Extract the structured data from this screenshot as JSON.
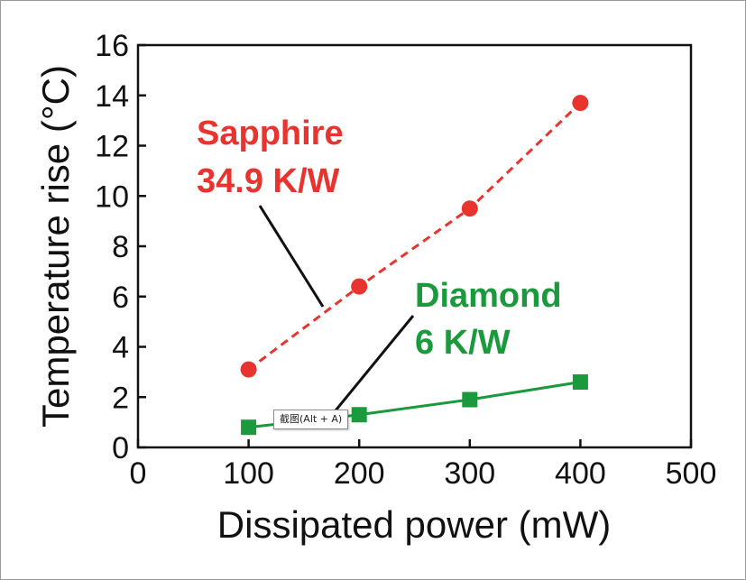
{
  "chart_data": {
    "type": "line",
    "title": "",
    "xlabel": "Dissipated power (mW)",
    "ylabel": "Temperature rise (°C)",
    "xlim": [
      0,
      500
    ],
    "ylim": [
      0,
      16
    ],
    "xticks": [
      0,
      100,
      200,
      300,
      400,
      500
    ],
    "yticks": [
      0,
      2,
      4,
      6,
      8,
      10,
      12,
      14,
      16
    ],
    "grid": false,
    "series": [
      {
        "name": "Sapphire",
        "color": "#e8332e",
        "line_style": "dashed",
        "marker": "circle",
        "x": [
          100,
          200,
          300,
          400
        ],
        "y": [
          3.1,
          6.4,
          9.5,
          13.7
        ],
        "label": {
          "line1": "Sapphire",
          "line2": "34.9 K/W"
        }
      },
      {
        "name": "Diamond",
        "color": "#1a9a3c",
        "line_style": "solid",
        "marker": "square",
        "x": [
          100,
          200,
          300,
          400
        ],
        "y": [
          0.8,
          1.3,
          1.9,
          2.6
        ],
        "label": {
          "line1": "Diamond",
          "line2": "6 K/W"
        }
      }
    ]
  },
  "tooltip": {
    "text": "截图(Alt + A)"
  }
}
